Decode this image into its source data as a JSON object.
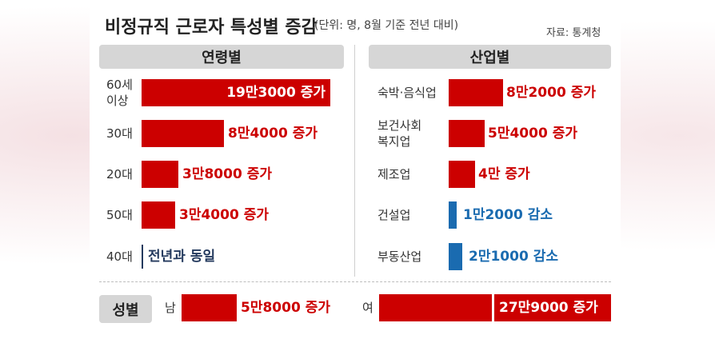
{
  "header": {
    "title": "비정규직 근로자 특성별 증감",
    "subtitle": "(단위: 명, 8월 기준 전년 대비)",
    "source": "자료: 통계청"
  },
  "chart_data": [
    {
      "type": "bar",
      "title": "연령별",
      "categories": [
        "60세 이상",
        "30대",
        "20대",
        "50대",
        "40대"
      ],
      "values": [
        193000,
        84000,
        38000,
        34000,
        0
      ],
      "labels": [
        "19만3000 증가",
        "8만4000 증가",
        "3만8000 증가",
        "3만4000 증가",
        "전년과 동일"
      ]
    },
    {
      "type": "bar",
      "title": "산업별",
      "categories": [
        "숙박·음식업",
        "보건사회 복지업",
        "제조업",
        "건설업",
        "부동산업"
      ],
      "values": [
        82000,
        54000,
        40000,
        -12000,
        -21000
      ],
      "labels": [
        "8만2000 증가",
        "5만4000 증가",
        "4만 증가",
        "1만2000 감소",
        "2만1000 감소"
      ]
    },
    {
      "type": "bar",
      "title": "성별",
      "categories": [
        "남",
        "여"
      ],
      "values": [
        58000,
        279000
      ],
      "labels": [
        "5만8000 증가",
        "27만9000 증가"
      ]
    }
  ],
  "colors": {
    "increase": "#cc0000",
    "decrease": "#1a6bb0",
    "no_change": "#243a5e",
    "header_bg": "#d6d6d6"
  }
}
